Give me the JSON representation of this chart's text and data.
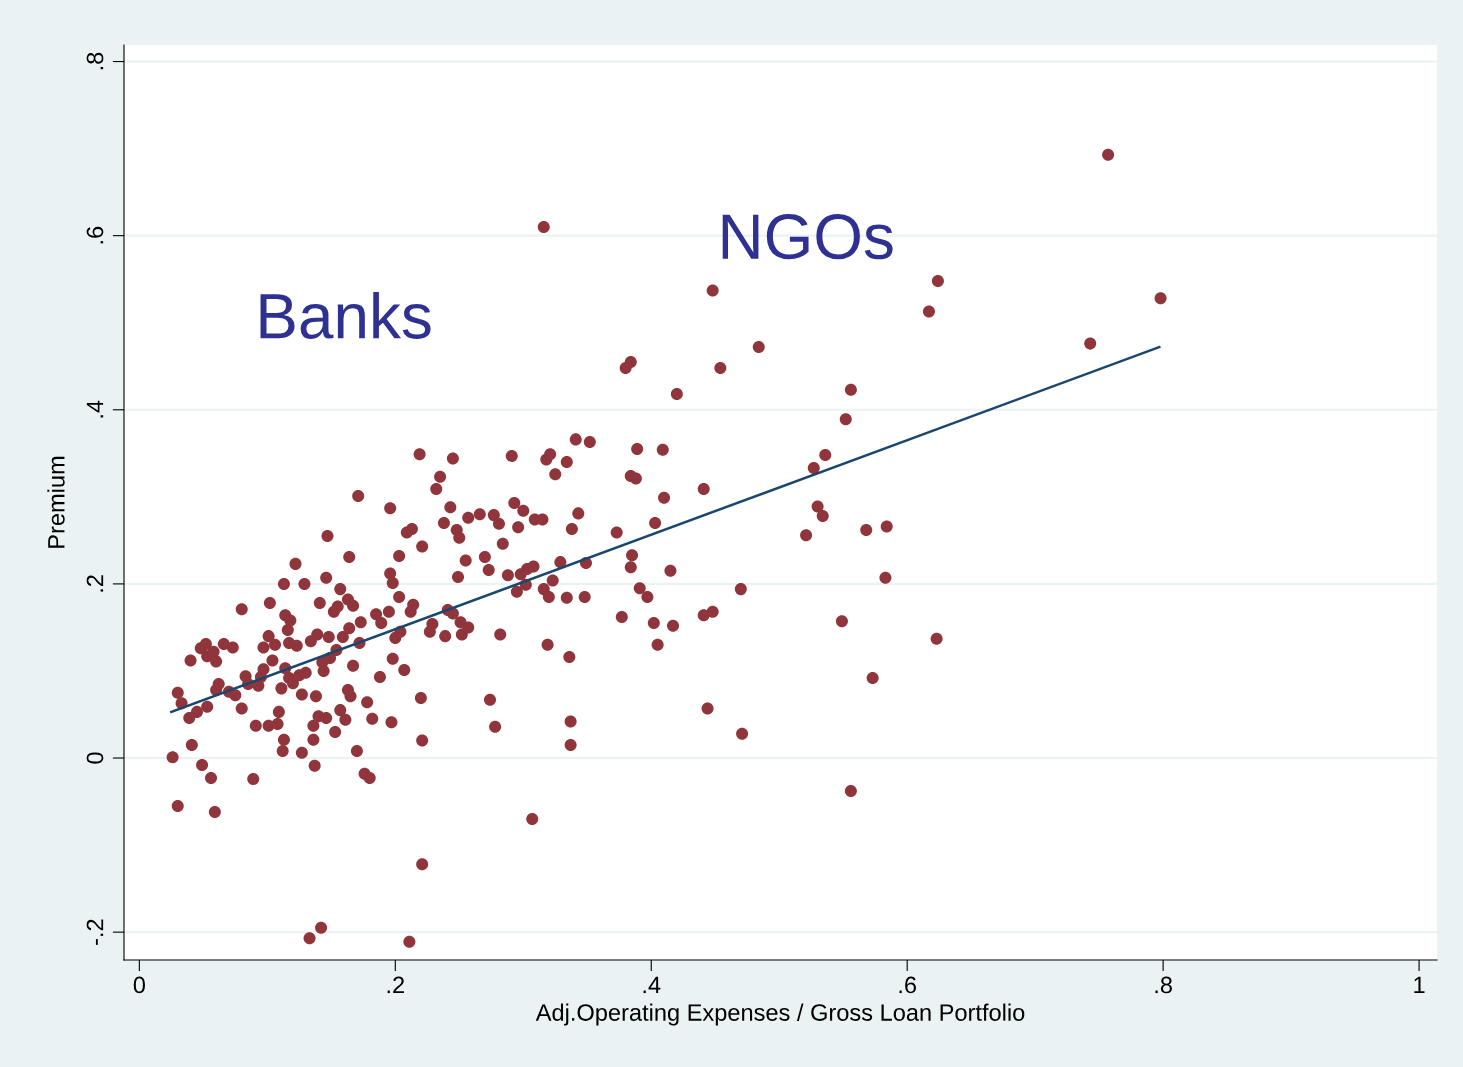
{
  "chart_data": {
    "type": "scatter",
    "xlabel": "Adj.Operating Expenses / Gross Loan Portfolio",
    "ylabel": "Premium",
    "xlim": [
      -0.012,
      1.014
    ],
    "ylim": [
      -0.232,
      0.819
    ],
    "xticks": [
      0,
      {
        "value": 0.2,
        "label": ".2"
      },
      {
        "value": 0.4,
        "label": ".4"
      },
      {
        "value": 0.6,
        "label": ".6"
      },
      {
        "value": 0.8,
        "label": ".8"
      },
      1
    ],
    "yticks": [
      {
        "value": -0.2,
        "label": "-.2"
      },
      0,
      {
        "value": 0.2,
        "label": ".2"
      },
      {
        "value": 0.4,
        "label": ".4"
      },
      {
        "value": 0.6,
        "label": ".6"
      },
      {
        "value": 0.8,
        "label": ".8"
      }
    ],
    "grid": "y",
    "legend": false,
    "marker": "circle",
    "annotations": [
      "Banks",
      "NGOs"
    ],
    "series": [
      {
        "color": "#90353b",
        "x": [
          0.026,
          0.03,
          0.03,
          0.033,
          0.039,
          0.041,
          0.04,
          0.045,
          0.049,
          0.048,
          0.052,
          0.053,
          0.053,
          0.056,
          0.058,
          0.06,
          0.059,
          0.06,
          0.062,
          0.066,
          0.07,
          0.073,
          0.075,
          0.08,
          0.08,
          0.083,
          0.085,
          0.089,
          0.091,
          0.093,
          0.095,
          0.097,
          0.097,
          0.101,
          0.102,
          0.101,
          0.104,
          0.106,
          0.108,
          0.109,
          0.111,
          0.112,
          0.113,
          0.113,
          0.114,
          0.114,
          0.116,
          0.117,
          0.117,
          0.118,
          0.12,
          0.122,
          0.123,
          0.125,
          0.127,
          0.127,
          0.129,
          0.13,
          0.133,
          0.134,
          0.136,
          0.136,
          0.137,
          0.138,
          0.139,
          0.14,
          0.141,
          0.142,
          0.143,
          0.144,
          0.146,
          0.146,
          0.147,
          0.148,
          0.149,
          0.152,
          0.153,
          0.154,
          0.155,
          0.157,
          0.157,
          0.159,
          0.161,
          0.163,
          0.163,
          0.164,
          0.164,
          0.165,
          0.167,
          0.167,
          0.17,
          0.171,
          0.172,
          0.173,
          0.176,
          0.178,
          0.18,
          0.182,
          0.185,
          0.188,
          0.189,
          0.195,
          0.196,
          0.196,
          0.197,
          0.198,
          0.198,
          0.2,
          0.203,
          0.203,
          0.204,
          0.207,
          0.209,
          0.211,
          0.212,
          0.213,
          0.214,
          0.219,
          0.22,
          0.221,
          0.221,
          0.221,
          0.227,
          0.229,
          0.232,
          0.235,
          0.238,
          0.239,
          0.241,
          0.243,
          0.245,
          0.245,
          0.248,
          0.249,
          0.25,
          0.251,
          0.252,
          0.255,
          0.257,
          0.257,
          0.266,
          0.27,
          0.273,
          0.274,
          0.277,
          0.278,
          0.281,
          0.282,
          0.284,
          0.288,
          0.291,
          0.293,
          0.295,
          0.296,
          0.298,
          0.3,
          0.302,
          0.303,
          0.307,
          0.308,
          0.309,
          0.315,
          0.316,
          0.316,
          0.318,
          0.319,
          0.32,
          0.321,
          0.323,
          0.325,
          0.329,
          0.334,
          0.334,
          0.336,
          0.337,
          0.337,
          0.338,
          0.341,
          0.343,
          0.348,
          0.349,
          0.352,
          0.373,
          0.377,
          0.38,
          0.384,
          0.384,
          0.384,
          0.385,
          0.388,
          0.389,
          0.391,
          0.397,
          0.402,
          0.403,
          0.405,
          0.409,
          0.41,
          0.415,
          0.417,
          0.42,
          0.441,
          0.441,
          0.444,
          0.448,
          0.448,
          0.454,
          0.47,
          0.471,
          0.484,
          0.521,
          0.527,
          0.53,
          0.534,
          0.536,
          0.549,
          0.552,
          0.556,
          0.556,
          0.568,
          0.573,
          0.583,
          0.584,
          0.617,
          0.623,
          0.624,
          0.743,
          0.757,
          0.798
        ],
        "values": [
          0.001,
          -0.055,
          0.075,
          0.063,
          0.046,
          0.015,
          0.112,
          0.053,
          -0.008,
          0.126,
          0.131,
          0.117,
          0.059,
          -0.023,
          0.122,
          0.111,
          -0.062,
          0.078,
          0.085,
          0.131,
          0.076,
          0.127,
          0.072,
          0.171,
          0.057,
          0.094,
          0.085,
          -0.024,
          0.037,
          0.083,
          0.093,
          0.102,
          0.127,
          0.14,
          0.178,
          0.037,
          0.112,
          0.13,
          0.039,
          0.053,
          0.08,
          0.008,
          0.021,
          0.2,
          0.164,
          0.103,
          0.147,
          0.132,
          0.092,
          0.158,
          0.086,
          0.223,
          0.129,
          0.095,
          0.006,
          0.073,
          0.2,
          0.098,
          -0.207,
          0.134,
          0.037,
          0.021,
          -0.009,
          0.071,
          0.142,
          0.048,
          0.178,
          -0.195,
          0.11,
          0.1,
          0.046,
          0.207,
          0.255,
          0.139,
          0.115,
          0.168,
          0.03,
          0.124,
          0.174,
          0.194,
          0.055,
          0.139,
          0.044,
          0.182,
          0.078,
          0.149,
          0.231,
          0.071,
          0.175,
          0.106,
          0.008,
          0.301,
          0.132,
          0.156,
          -0.018,
          0.064,
          -0.023,
          0.045,
          0.165,
          0.093,
          0.155,
          0.168,
          0.287,
          0.212,
          0.041,
          0.201,
          0.114,
          0.138,
          0.232,
          0.185,
          0.145,
          0.101,
          0.259,
          -0.211,
          0.168,
          0.263,
          0.176,
          0.349,
          0.069,
          0.02,
          -0.122,
          0.243,
          0.145,
          0.154,
          0.309,
          0.323,
          0.27,
          0.14,
          0.17,
          0.288,
          0.344,
          0.166,
          0.262,
          0.208,
          0.253,
          0.156,
          0.142,
          0.227,
          0.15,
          0.276,
          0.28,
          0.231,
          0.216,
          0.067,
          0.279,
          0.036,
          0.269,
          0.142,
          0.246,
          0.21,
          0.347,
          0.293,
          0.191,
          0.265,
          0.211,
          0.284,
          0.199,
          0.217,
          -0.07,
          0.22,
          0.274,
          0.274,
          0.61,
          0.194,
          0.343,
          0.13,
          0.185,
          0.349,
          0.204,
          0.326,
          0.225,
          0.34,
          0.184,
          0.116,
          0.042,
          0.015,
          0.263,
          0.366,
          0.281,
          0.185,
          0.224,
          0.363,
          0.259,
          0.162,
          0.448,
          0.455,
          0.324,
          0.219,
          0.233,
          0.321,
          0.355,
          0.195,
          0.185,
          0.155,
          0.27,
          0.13,
          0.354,
          0.299,
          0.215,
          0.152,
          0.418,
          0.309,
          0.164,
          0.057,
          0.537,
          0.168,
          0.448,
          0.194,
          0.028,
          0.472,
          0.256,
          0.333,
          0.289,
          0.278,
          0.348,
          0.157,
          0.389,
          0.423,
          -0.038,
          0.262,
          0.092,
          0.207,
          0.266,
          0.513,
          0.137,
          0.548,
          0.476,
          0.693,
          0.528
        ]
      },
      {
        "type": "line",
        "color": "#1a476f",
        "x": [
          0.025,
          0.797
        ],
        "values": [
          0.053,
          0.472
        ],
        "marker": "none",
        "line_style": "solid"
      }
    ]
  }
}
